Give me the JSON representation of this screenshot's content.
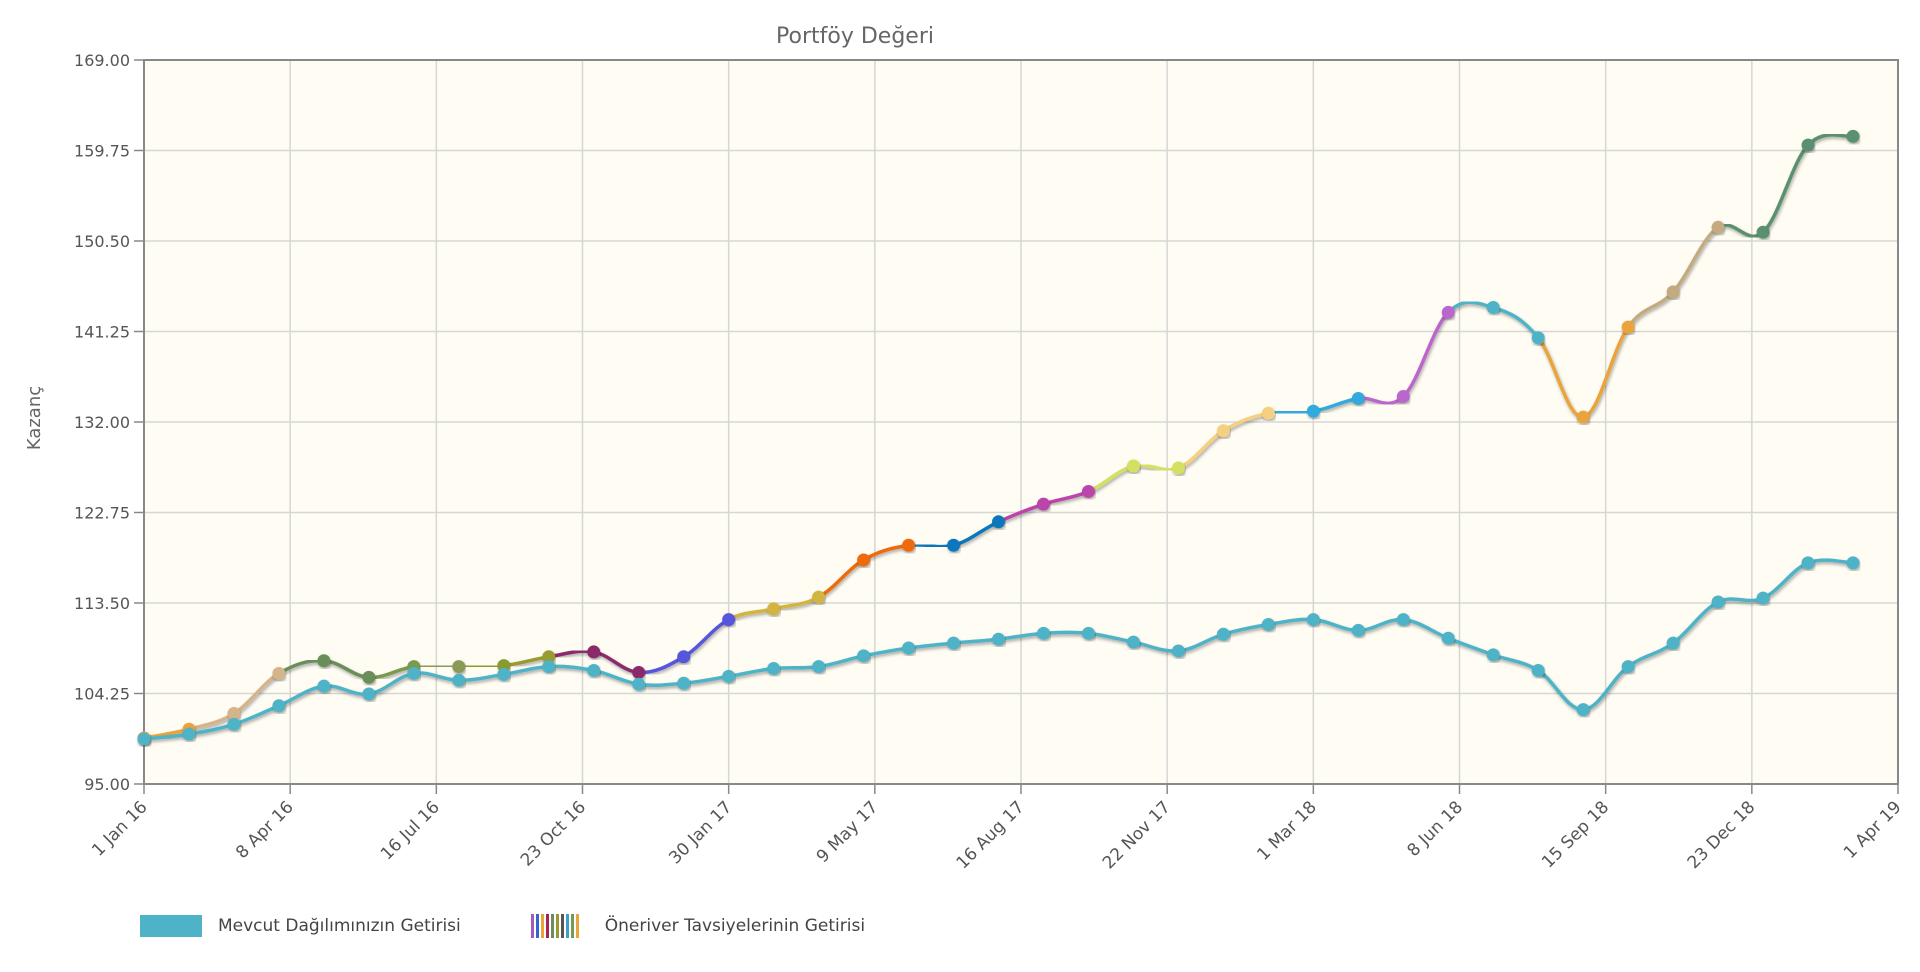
{
  "chart_data": {
    "type": "line",
    "title": "Portföy Değeri",
    "ylabel": "Kazanç",
    "xlabel": "",
    "ylim": [
      95,
      169
    ],
    "yticks": [
      "169.00",
      "159.75",
      "150.50",
      "141.25",
      "132.00",
      "122.75",
      "113.50",
      "104.25",
      "95.00"
    ],
    "xticks": [
      "1 Jan 16",
      "8 Apr 16",
      "16 Jul 16",
      "23 Oct 16",
      "30 Jan 17",
      "9 May 17",
      "16 Aug 17",
      "22 Nov 17",
      "1 Mar 18",
      "8 Jun 18",
      "15 Sep 18",
      "23 Dec 18",
      "1 Apr 19"
    ],
    "x": [
      0,
      1,
      2,
      3,
      4,
      5,
      6,
      7,
      8,
      9,
      10,
      11,
      12,
      13,
      14,
      15,
      16,
      17,
      18,
      19,
      20,
      21,
      22,
      23,
      24,
      25,
      26,
      27,
      28,
      29,
      30,
      31,
      32,
      33,
      34,
      35,
      36,
      37,
      38
    ],
    "x_unit": "month",
    "grid": true,
    "series": [
      {
        "name": "Mevcut Dağılımınızın Getirisi",
        "color": "#4fb3c8",
        "values": [
          99.6,
          100.1,
          101.1,
          103.0,
          105.0,
          104.2,
          106.3,
          105.6,
          106.2,
          107.0,
          106.6,
          105.2,
          105.3,
          106.0,
          106.8,
          107.0,
          108.1,
          108.9,
          109.4,
          109.8,
          110.4,
          110.4,
          109.5,
          108.6,
          110.3,
          111.3,
          111.8,
          110.7,
          111.8,
          109.9,
          108.2,
          106.6,
          102.6,
          107.0,
          109.4,
          113.6,
          114.0,
          117.6,
          117.6
        ]
      },
      {
        "name": "Öneriver Tavsiyelerinin Getirisi",
        "values": [
          99.7,
          100.6,
          102.2,
          106.3,
          107.6,
          105.9,
          107.0,
          107.0,
          107.1,
          108.0,
          108.5,
          106.4,
          108.0,
          111.8,
          112.9,
          114.1,
          117.9,
          119.4,
          119.4,
          121.8,
          123.6,
          124.9,
          127.5,
          127.3,
          131.1,
          132.9,
          133.1,
          134.4,
          134.6,
          143.2,
          143.7,
          140.6,
          132.5,
          141.7,
          145.3,
          151.9,
          151.4,
          160.3,
          161.2
        ],
        "point_colors": [
          "#e9a43a",
          "#e9a43a",
          "#d4b48a",
          "#d4b48a",
          "#6b8e5a",
          "#6b8e5a",
          "#7a9a50",
          "#8a9a55",
          "#8a9a30",
          "#9a9a30",
          "#8a2a6a",
          "#8a2a6a",
          "#5555dd",
          "#5555dd",
          "#d4b440",
          "#d4b440",
          "#ee6a10",
          "#ee6a10",
          "#1177bb",
          "#1177bb",
          "#bb44aa",
          "#bb44aa",
          "#d4e060",
          "#d4e060",
          "#f5d080",
          "#f5d080",
          "#33aadd",
          "#33aadd",
          "#bb66cc",
          "#bb66cc",
          "#4fb3c8",
          "#4fb3c8",
          "#e9a43a",
          "#e9a43a",
          "#c4aa80",
          "#c4aa80",
          "#5a9070",
          "#5a9070",
          "#5a9070"
        ],
        "legend_colors": [
          "#a05ac0",
          "#3366cc",
          "#e9a43a",
          "#aa2255",
          "#6b8e5a",
          "#9a9a30",
          "#555555",
          "#3aa0c8",
          "#7a9a50",
          "#e9a43a"
        ]
      }
    ],
    "legend": [
      "Mevcut Dağılımınızın Getirisi",
      "Öneriver Tavsiyelerinin Getirisi"
    ],
    "legend_position": "bottom-left"
  }
}
